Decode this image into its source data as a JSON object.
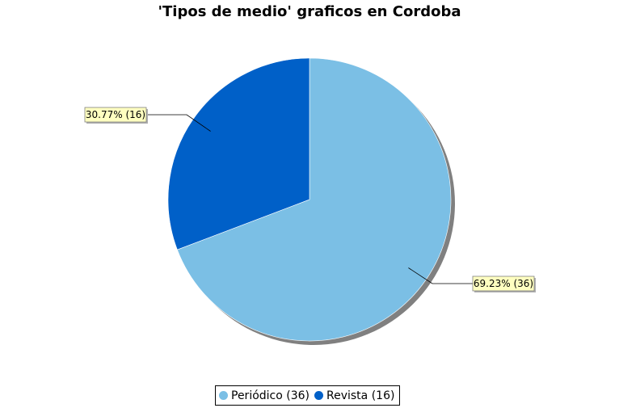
{
  "chart_data": {
    "type": "pie",
    "title": "'Tipos de medio' graficos en Cordoba",
    "slices": [
      {
        "name": "Periódico",
        "value": 36,
        "percent": "69.23%",
        "label": "69.23% (36)",
        "legend": "Periódico (36)",
        "color": "#7bbfe5"
      },
      {
        "name": "Revista",
        "value": 16,
        "percent": "30.77%",
        "label": "30.77% (16)",
        "legend": "Revista (16)",
        "color": "#0060c8"
      }
    ],
    "legend_position": "bottom",
    "label_background": "#ffffc0"
  }
}
